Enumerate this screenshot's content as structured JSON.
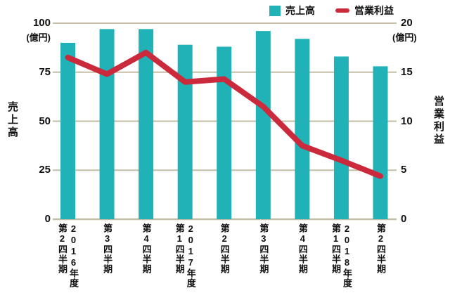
{
  "chart_data": {
    "type": "bar",
    "legend_position": "top",
    "grid": true,
    "background": "#ffffff",
    "grid_color": "#c6bda6",
    "text_color": "#111111",
    "categories": [
      {
        "quarter": "第2四半期",
        "year": "2016年度"
      },
      {
        "quarter": "第3四半期",
        "year": ""
      },
      {
        "quarter": "第4四半期",
        "year": ""
      },
      {
        "quarter": "第1四半期",
        "year": "2017年度"
      },
      {
        "quarter": "第2四半期",
        "year": ""
      },
      {
        "quarter": "第3四半期",
        "year": ""
      },
      {
        "quarter": "第4四半期",
        "year": ""
      },
      {
        "quarter": "第1四半期",
        "year": "2018年度"
      },
      {
        "quarter": "第2四半期",
        "year": ""
      }
    ],
    "series": [
      {
        "name": "売上高",
        "type": "bar",
        "axis": "left",
        "color": "#20b2b6",
        "values": [
          90,
          97,
          97,
          89,
          88,
          96,
          92,
          83,
          78
        ]
      },
      {
        "name": "営業利益",
        "type": "line",
        "axis": "right",
        "color": "#ca2a3c",
        "values": [
          16.5,
          14.8,
          17,
          14,
          14.3,
          11.5,
          7.5,
          6,
          4.4
        ]
      }
    ],
    "left_axis": {
      "title": "売上高",
      "unit": "(億円)",
      "ticks": [
        100,
        75,
        50,
        25,
        0
      ],
      "range": [
        0,
        100
      ]
    },
    "right_axis": {
      "title": "営業利益",
      "unit": "(億円)",
      "ticks": [
        20,
        15,
        10,
        5,
        0
      ],
      "range": [
        0,
        20
      ]
    }
  }
}
